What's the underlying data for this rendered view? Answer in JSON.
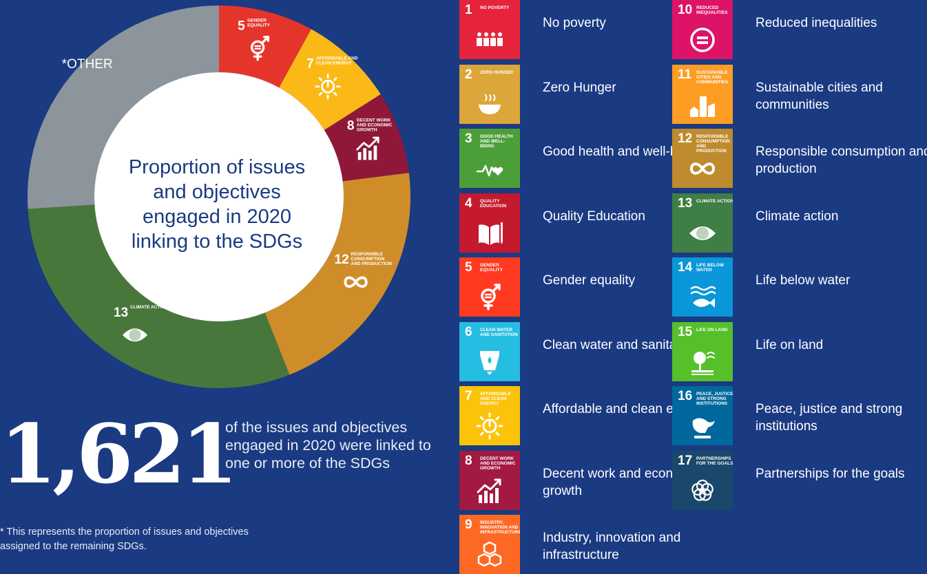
{
  "chart_data": {
    "type": "pie",
    "title": "Proportion of issues and objectives engaged in 2020 linking to the SDGs",
    "slices": [
      {
        "label": "5 GENDER EQUALITY",
        "number": "5",
        "name": "GENDER EQUALITY",
        "value": 8,
        "color": "#e5352b"
      },
      {
        "label": "7 AFFORDABLE AND CLEAN ENERGY",
        "number": "7",
        "name": "AFFORDABLE AND CLEAN ENERGY",
        "value": 8,
        "color": "#fbb917"
      },
      {
        "label": "8 DECENT WORK AND ECONOMIC GROWTH",
        "number": "8",
        "name": "DECENT WORK AND ECONOMIC GROWTH",
        "value": 7,
        "color": "#8f1838"
      },
      {
        "label": "12 RESPONSIBLE CONSUMPTION AND PRODUCTION",
        "number": "12",
        "name": "RESPONSIBLE CONSUMPTION AND PRODUCTION",
        "value": 21,
        "color": "#cf8d2a"
      },
      {
        "label": "13 CLIMATE ACTION",
        "number": "13",
        "name": "CLIMATE ACTION",
        "value": 30,
        "color": "#48773c"
      },
      {
        "label": "*OTHER",
        "number": "",
        "name": "*OTHER",
        "value": 26,
        "color": "#8c959c"
      }
    ]
  },
  "center_text": [
    "Proportion of issues",
    "and objectives",
    "engaged in 2020",
    "linking to the SDGs"
  ],
  "other_label": "*OTHER",
  "headline": {
    "number": "1,621",
    "caption": "of the issues and objectives engaged in 2020 were linked to one or more of the SDGs"
  },
  "footnote": "* This represents the proportion of issues and objectives assigned to the remaining SDGs.",
  "colors": {
    "background": "#1a3a82",
    "donut_hole": "#ffffff"
  },
  "goals": [
    {
      "number": "1",
      "tile_title": "NO POVERTY",
      "label": "No poverty",
      "color": "#e5243b",
      "icon": "family-icon"
    },
    {
      "number": "2",
      "tile_title": "ZERO HUNGER",
      "label": "Zero Hunger",
      "color": "#dda63a",
      "icon": "bowl-icon"
    },
    {
      "number": "3",
      "tile_title": "GOOD HEALTH AND WELL-BEING",
      "label": "Good health and well-being",
      "color": "#4c9f38",
      "icon": "heartbeat-icon"
    },
    {
      "number": "4",
      "tile_title": "QUALITY EDUCATION",
      "label": "Quality Education",
      "color": "#c5192d",
      "icon": "book-icon"
    },
    {
      "number": "5",
      "tile_title": "GENDER EQUALITY",
      "label": "Gender equality",
      "color": "#ff3a21",
      "icon": "gender-icon"
    },
    {
      "number": "6",
      "tile_title": "CLEAN WATER AND SANITATION",
      "label": "Clean water and sanitation",
      "color": "#26bde2",
      "icon": "water-icon"
    },
    {
      "number": "7",
      "tile_title": "AFFORDABLE AND CLEAN ENERGY",
      "label": "Affordable and clean energy",
      "color": "#fcc30b",
      "icon": "sun-power-icon"
    },
    {
      "number": "8",
      "tile_title": "DECENT WORK AND ECONOMIC GROWTH",
      "label": "Decent work and economic growth",
      "color": "#a21942",
      "icon": "growth-chart-icon"
    },
    {
      "number": "9",
      "tile_title": "INDUSTRY, INNOVATION AND INFRASTRUCTURE",
      "label": "Industry, innovation and infrastructure",
      "color": "#fd6925",
      "icon": "cubes-icon"
    },
    {
      "number": "10",
      "tile_title": "REDUCED INEQUALITIES",
      "label": "Reduced inequalities",
      "color": "#dd1367",
      "icon": "equals-icon"
    },
    {
      "number": "11",
      "tile_title": "SUSTAINABLE CITIES AND COMMUNITIES",
      "label": "Sustainable cities and communities",
      "color": "#fd9d24",
      "icon": "city-icon"
    },
    {
      "number": "12",
      "tile_title": "RESPONSIBLE CONSUMPTION AND PRODUCTION",
      "label": "Responsible consumption and production",
      "color": "#bf8b2e",
      "icon": "infinity-icon"
    },
    {
      "number": "13",
      "tile_title": "CLIMATE ACTION",
      "label": "Climate action",
      "color": "#3f7e44",
      "icon": "eye-globe-icon"
    },
    {
      "number": "14",
      "tile_title": "LIFE BELOW WATER",
      "label": "Life below water",
      "color": "#0a97d9",
      "icon": "fish-icon"
    },
    {
      "number": "15",
      "tile_title": "LIFE ON LAND",
      "label": "Life on land",
      "color": "#56c02b",
      "icon": "tree-icon"
    },
    {
      "number": "16",
      "tile_title": "PEACE, JUSTICE AND STRONG INSTITUTIONS",
      "label": "Peace, justice and strong institutions",
      "color": "#00689d",
      "icon": "dove-icon"
    },
    {
      "number": "17",
      "tile_title": "PARTNERSHIPS FOR THE GOALS",
      "label": "Partnerships for the goals",
      "color": "#19486a",
      "icon": "rings-icon"
    }
  ]
}
